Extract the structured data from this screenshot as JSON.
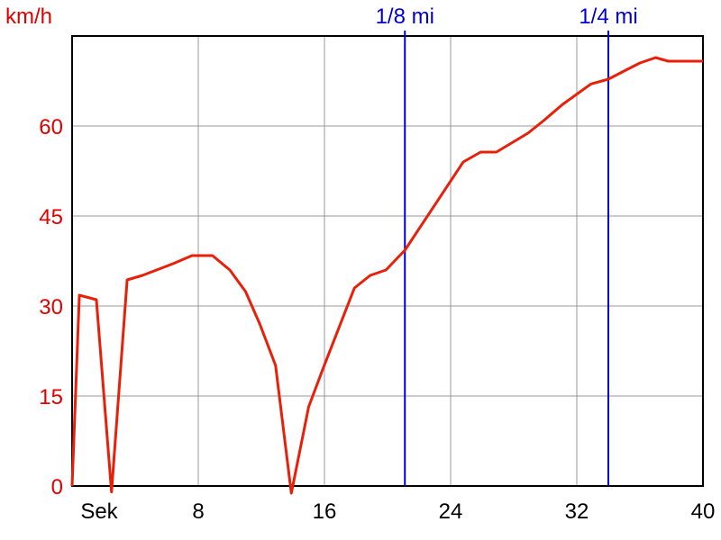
{
  "chart_data": {
    "type": "line",
    "y_label": "km/h",
    "x_label": "Sek",
    "x": [
      0,
      0.46,
      1.54,
      2.5,
      3.49,
      4.46,
      6.4,
      7.6,
      8.9,
      10,
      11,
      11.9,
      12.9,
      13.9,
      15,
      15.9,
      17.9,
      18.9,
      19.9,
      21.1,
      24.8,
      25.9,
      26.9,
      28.9,
      29.9,
      31.1,
      32.9,
      34,
      35.1,
      36,
      37,
      37.8,
      40
    ],
    "series": [
      {
        "color": "#e8200a",
        "values": [
          0,
          31.8,
          31.05,
          -1,
          34.35,
          35.1,
          37.05,
          38.4,
          38.4,
          36,
          32.4,
          27,
          20.1,
          -1.2,
          13.2,
          19.5,
          33,
          35.1,
          36,
          39.3,
          54,
          55.65,
          55.65,
          58.8,
          60.9,
          63.6,
          67,
          67.8,
          69.3,
          70.5,
          71.4,
          70.8,
          70.8
        ]
      }
    ],
    "xlim": [
      0,
      40
    ],
    "xticks": [
      8,
      16,
      24,
      32,
      40
    ],
    "ylim": [
      0,
      75
    ],
    "yticks": [
      0,
      15,
      30,
      45,
      60
    ],
    "grid": true,
    "markers": [
      {
        "x": 21.1,
        "label": "1/8 mi"
      },
      {
        "x": 34,
        "label": "1/4 mi"
      }
    ],
    "marker_color": "#0000d0"
  }
}
